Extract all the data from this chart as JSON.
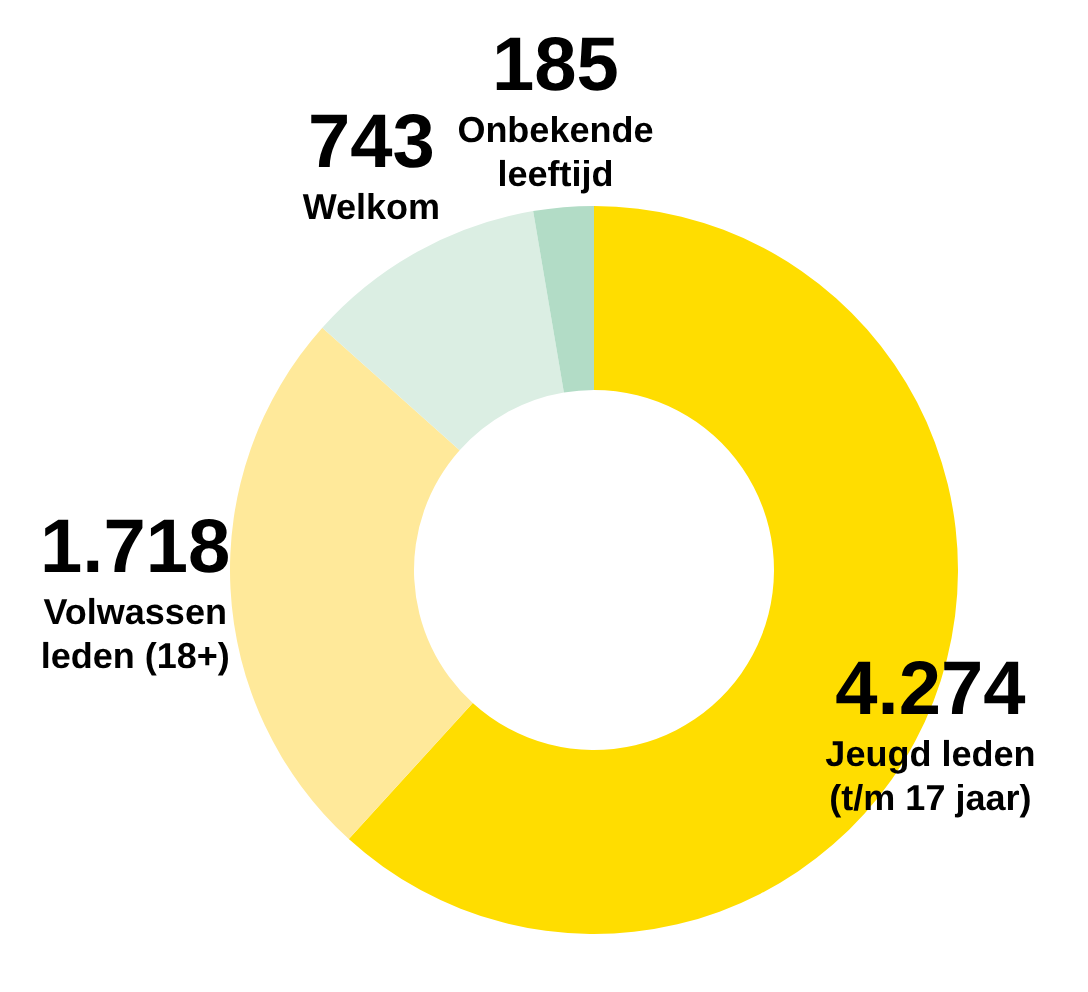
{
  "chart_data": {
    "type": "donut",
    "categories": [
      "Jeugd leden (t/m 17 jaar)",
      "Volwassen leden (18+)",
      "Welkom",
      "Onbekende leeftijd"
    ],
    "values": [
      4274,
      1718,
      743,
      185
    ],
    "value_labels": [
      "4.274",
      "1.718",
      "743",
      "185"
    ],
    "colors": [
      "#ffdd00",
      "#ffe99a",
      "#dbeee3",
      "#b2dcc6"
    ],
    "legend": false
  }
}
